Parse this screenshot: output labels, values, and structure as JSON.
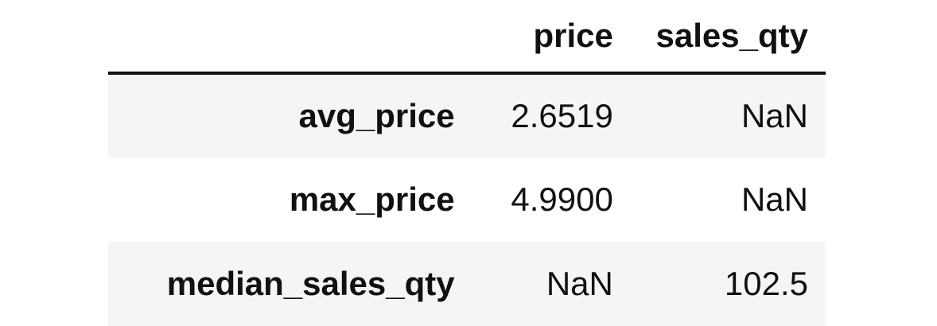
{
  "table": {
    "columns": [
      "price",
      "sales_qty"
    ],
    "index_header": "",
    "rows": [
      {
        "index": "avg_price",
        "values": [
          "2.6519",
          "NaN"
        ]
      },
      {
        "index": "max_price",
        "values": [
          "4.9900",
          "NaN"
        ]
      },
      {
        "index": "median_sales_qty",
        "values": [
          "NaN",
          "102.5"
        ]
      }
    ]
  }
}
